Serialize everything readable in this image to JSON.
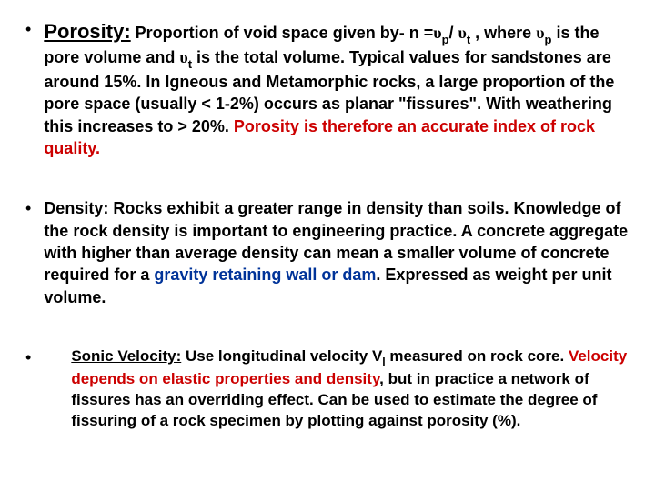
{
  "colors": {
    "red": "#cc0000",
    "blue": "#003399",
    "text": "#000000",
    "background": "#ffffff"
  },
  "typography": {
    "body_fontsize": 18,
    "heading_fontsize": 22,
    "font_family": "Arial",
    "line_height": 1.35
  },
  "bullets": [
    {
      "heading": "Porosity:",
      "t1": " Proportion of void space given by-  n =",
      "sym1": "υ",
      "sub1": "p",
      "t2": "/ ",
      "sym2": "υ",
      "sub2": "t",
      "t3": " , where ",
      "sym3": "υ",
      "sub3": "p",
      "t4": " is the pore volume and ",
      "sym4": "υ",
      "sub4": "t",
      "t5": " is the total volume. Typical values for sandstones are around 15%.   In Igneous and Metamorphic rocks, a large proportion of the pore space (usually < 1-2%) occurs as planar \"fissures\". With weathering this increases to > 20%. ",
      "red": "Porosity is therefore an accurate index of rock quality."
    },
    {
      "heading": "Density:",
      "t1": " Rocks exhibit a greater range in density than soils. Knowledge of the rock density is important to engineering practice. A concrete aggregate with higher than average density can mean a smaller volume of concrete required for a ",
      "blue": "gravity retaining wall or dam",
      "t2": ". Expressed as weight per unit volume."
    },
    {
      "heading": "Sonic Velocity:",
      "t1": " Use longitudinal velocity V",
      "sub1": "l",
      "t2": " measured on rock core. ",
      "red": "Velocity depends on elastic properties and density",
      "t3": ", but in practice a network of fissures has an overriding effect. Can be used to estimate the degree of fissuring of a rock specimen by plotting against porosity (%)."
    }
  ]
}
